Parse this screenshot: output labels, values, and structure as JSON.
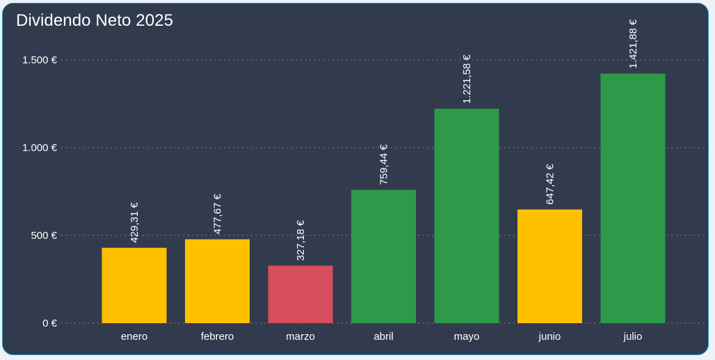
{
  "chart_data": {
    "type": "bar",
    "title": "Dividendo Neto 2025",
    "xlabel": "",
    "ylabel": "",
    "ylim": [
      0,
      1600
    ],
    "yticks": [
      0,
      500,
      1000,
      1500
    ],
    "ytick_labels": [
      "0 €",
      "500 €",
      "1.000 €",
      "1.500 €"
    ],
    "grid": true,
    "legend": "none",
    "categories": [
      "enero",
      "febrero",
      "marzo",
      "abril",
      "mayo",
      "junio",
      "julio"
    ],
    "values": [
      429.31,
      477.67,
      327.18,
      759.44,
      1221.58,
      647.42,
      1421.88
    ],
    "value_labels": [
      "429,31 €",
      "477,67 €",
      "327,18 €",
      "759,44 €",
      "1.221,58 €",
      "647,42 €",
      "1.421,88 €"
    ],
    "colors": [
      "#ffc000",
      "#ffc000",
      "#d64e5b",
      "#2e9a49",
      "#2e9a49",
      "#ffc000",
      "#2e9a49"
    ]
  },
  "theme": {
    "background": "#323a4e",
    "border": "#1e9bc2",
    "gridline": "#b0626a",
    "text": "#ffffff"
  }
}
